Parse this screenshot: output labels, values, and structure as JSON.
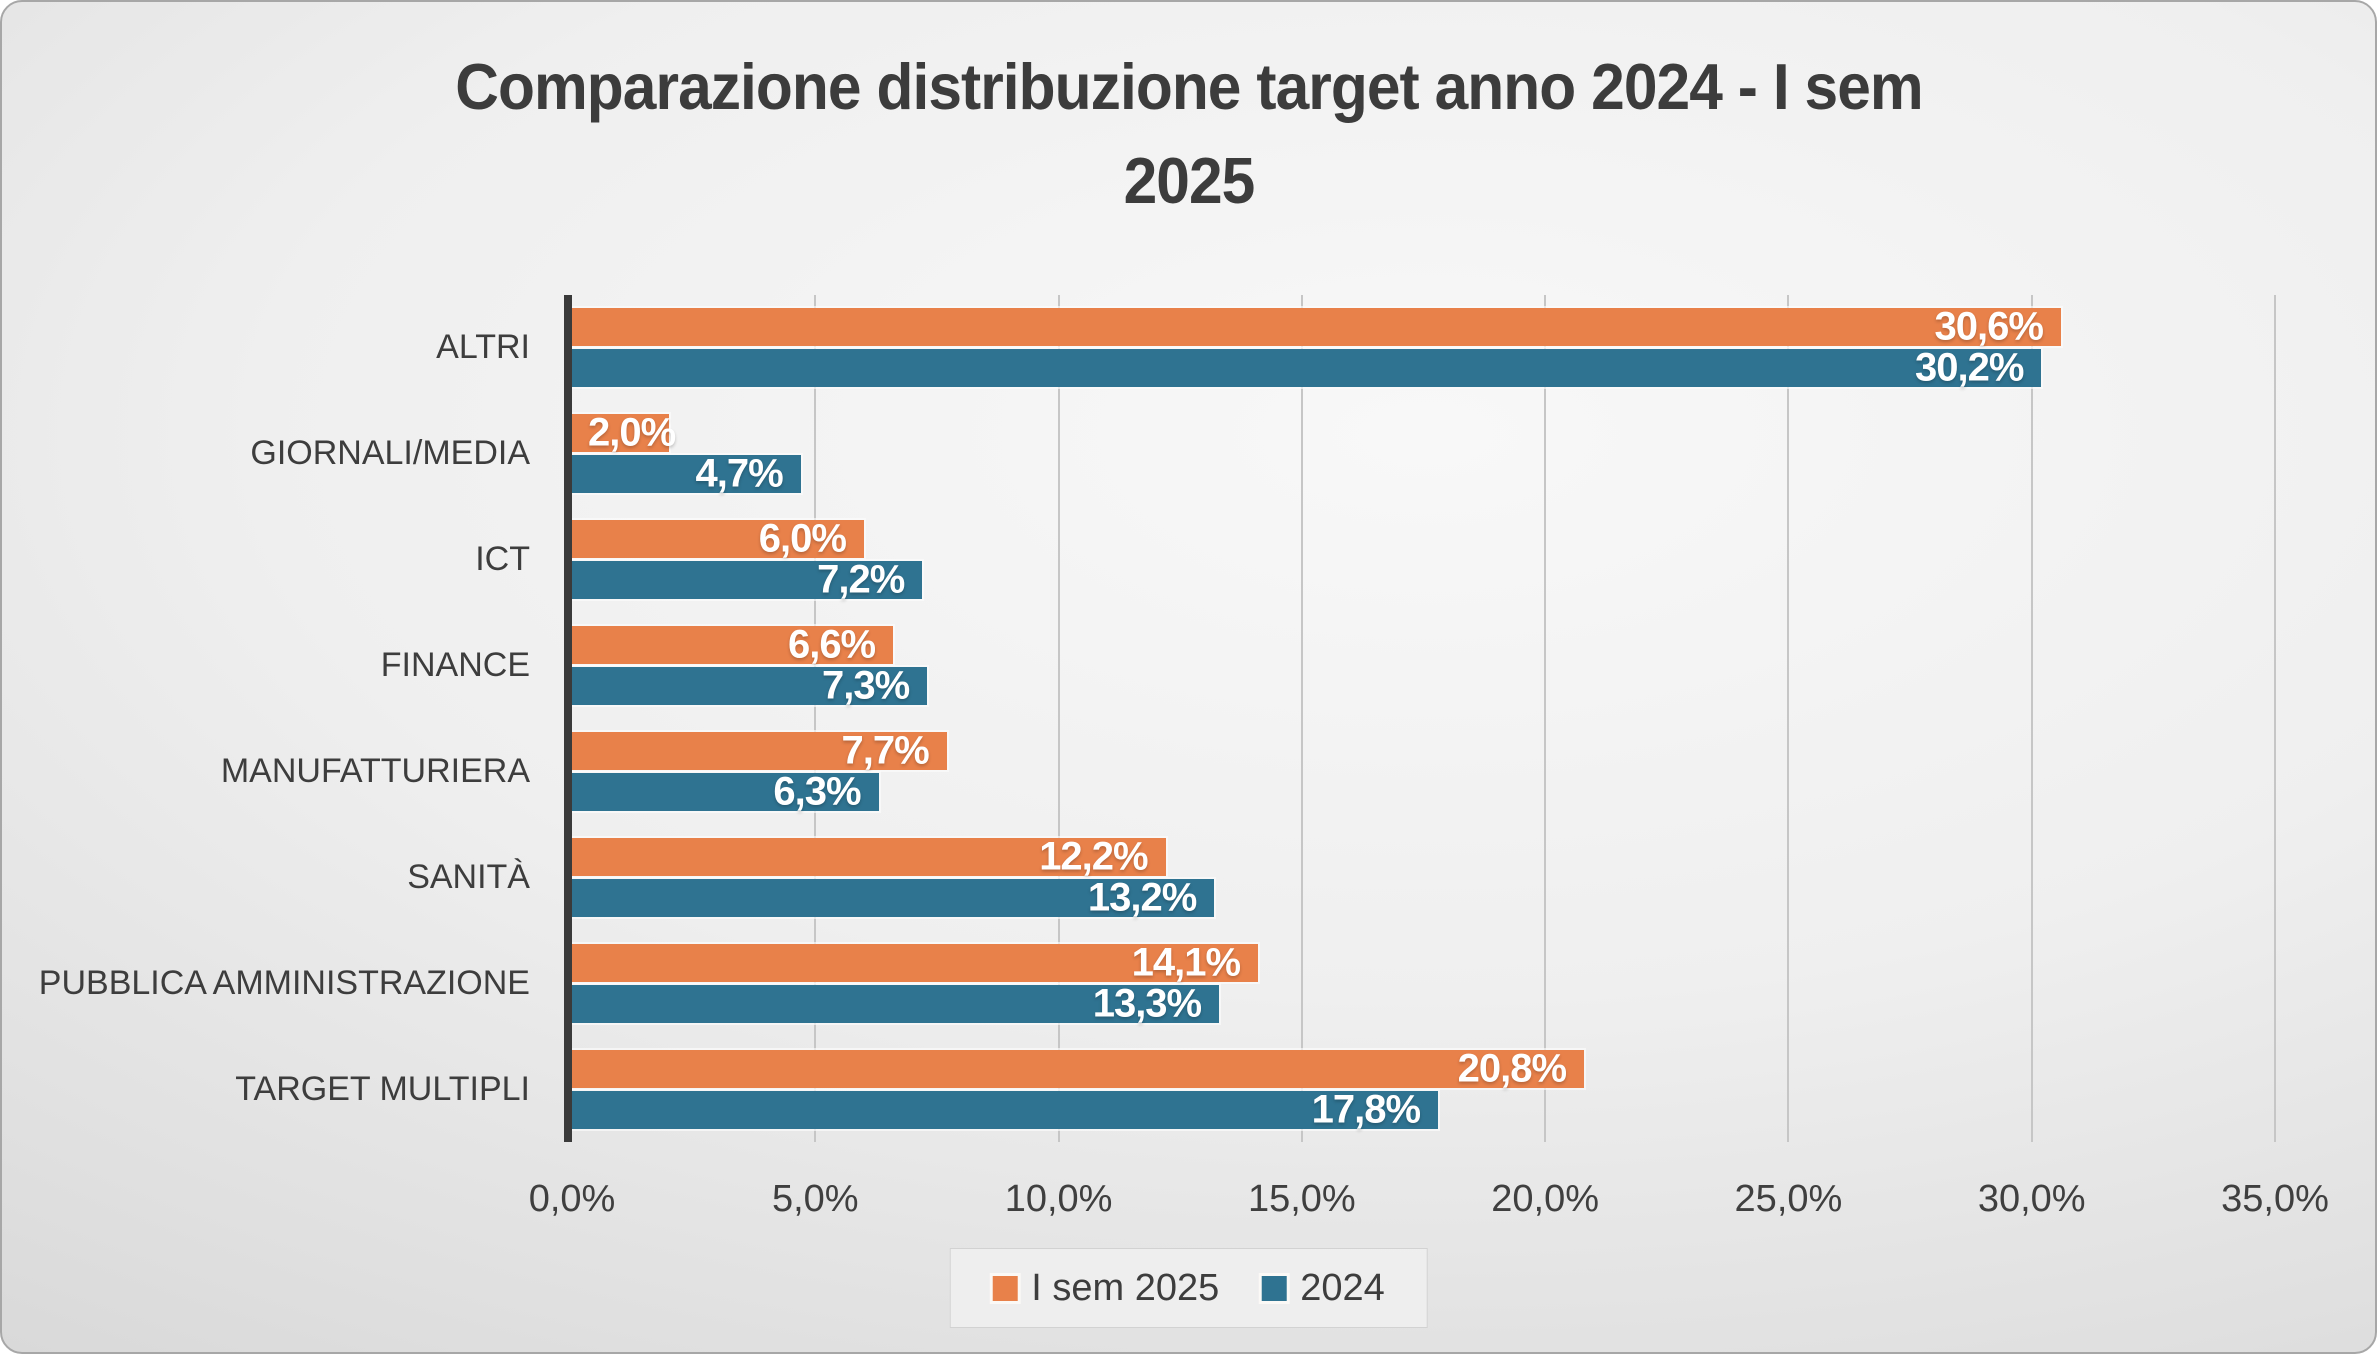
{
  "header": {
    "title": "Comparazione distribuzione target anno 2024 - I sem 2025",
    "title_line1": "Comparazione distribuzione target anno 2024 - I sem",
    "title_line2": "2025"
  },
  "chart_data": {
    "type": "bar",
    "orientation": "horizontal",
    "title": "Comparazione distribuzione target anno 2024 - I sem 2025",
    "categories": [
      "ALTRI",
      "GIORNALI/MEDIA",
      "ICT",
      "FINANCE",
      "MANUFATTURIERA",
      "SANITÀ",
      "PUBBLICA AMMINISTRAZIONE",
      "TARGET MULTIPLI"
    ],
    "series": [
      {
        "name": "I sem 2025",
        "color": "#E8814A",
        "values": [
          30.6,
          2.0,
          6.0,
          6.6,
          7.7,
          12.2,
          14.1,
          20.8
        ],
        "labels": [
          "30,6%",
          "2,0%",
          "6,0%",
          "6,6%",
          "7,7%",
          "12,2%",
          "14,1%",
          "20,8%"
        ]
      },
      {
        "name": "2024",
        "color": "#2F7391",
        "values": [
          30.2,
          4.7,
          7.2,
          7.3,
          6.3,
          13.2,
          13.3,
          17.8
        ],
        "labels": [
          "30,2%",
          "4,7%",
          "7,2%",
          "7,3%",
          "6,3%",
          "13,2%",
          "13,3%",
          "17,8%"
        ]
      }
    ],
    "xlim": [
      0,
      35
    ],
    "x_ticks": [
      "0,0%",
      "5,0%",
      "10,0%",
      "15,0%",
      "20,0%",
      "25,0%",
      "30,0%",
      "35,0%"
    ],
    "grid": true,
    "legend_position": "bottom",
    "value_labels": "inside-end",
    "decimal_separator": ","
  },
  "colors": {
    "series_isem2025": "#E8814A",
    "series_2024": "#2F7391",
    "title_text": "#3C3C3C",
    "axis_line": "#3A3A3A",
    "gridline": "#C6C6C6",
    "tick_text": "#3F3F3F",
    "bar_label_text": "#FFFFFF",
    "background_center": "#F8F8F8",
    "background_edge": "#C8C8C8"
  }
}
